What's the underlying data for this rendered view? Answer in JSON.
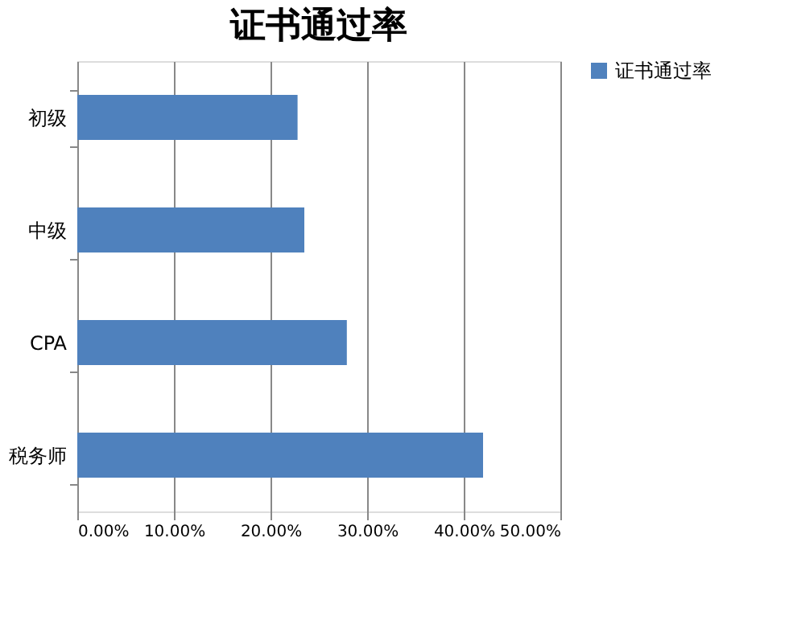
{
  "chart_data": {
    "type": "bar",
    "orientation": "horizontal",
    "title": "证书通过率",
    "categories": [
      "初级",
      "中级",
      "CPA",
      "税务师"
    ],
    "series": [
      {
        "name": "证书通过率",
        "color": "#4f81bd",
        "values": [
          22.8,
          23.5,
          27.9,
          42.0
        ]
      }
    ],
    "xlim": [
      0,
      50
    ],
    "xticks": [
      {
        "value": 0,
        "label": "0.00%"
      },
      {
        "value": 10,
        "label": "10.00%"
      },
      {
        "value": 20,
        "label": "20.00%"
      },
      {
        "value": 30,
        "label": "30.00%"
      },
      {
        "value": 40,
        "label": "40.00%"
      },
      {
        "value": 50,
        "label": "50.00%"
      }
    ],
    "grid": "x",
    "legend": "right"
  }
}
